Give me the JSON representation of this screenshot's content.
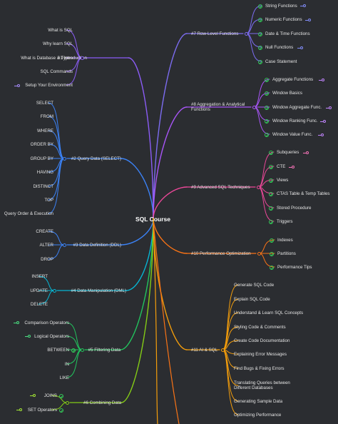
{
  "center": {
    "label": "SQL Course",
    "color": "#ffffff"
  },
  "left_branches": [
    {
      "label": "#1 Introduction",
      "color": "#8b5cf6",
      "children": [
        {
          "label": "What is SQL"
        },
        {
          "label": "Why learn SQL"
        },
        {
          "label": "What is Database & Types"
        },
        {
          "label": "SQL Commands"
        },
        {
          "label": "Setup Your Environment",
          "icon": "link-icon"
        }
      ]
    },
    {
      "label": "#2 Query Data (SELECT)",
      "color": "#3b82f6",
      "children": [
        {
          "label": "SELECT"
        },
        {
          "label": "FROM"
        },
        {
          "label": "WHERE"
        },
        {
          "label": "ORDER BY"
        },
        {
          "label": "GROUP BY"
        },
        {
          "label": "HAVING"
        },
        {
          "label": "DISTINCT"
        },
        {
          "label": "TOP"
        },
        {
          "label": "Query Order & Execution"
        }
      ]
    },
    {
      "label": "#3 Data Definition (DDL)",
      "color": "#3b82f6",
      "children": [
        {
          "label": "CREATE"
        },
        {
          "label": "ALTER"
        },
        {
          "label": "DROP"
        }
      ]
    },
    {
      "label": "#4 Data Manipulation (DML)",
      "color": "#06b6d4",
      "children": [
        {
          "label": "INSERT"
        },
        {
          "label": "UPDATE"
        },
        {
          "label": "DELETE"
        }
      ]
    },
    {
      "label": "#5 Filtering Data",
      "color": "#22c55e",
      "children": [
        {
          "label": "Comparison Operators",
          "icon": "link-icon"
        },
        {
          "label": "Logical Operators",
          "icon": "link-icon"
        },
        {
          "label": "BETWEEN",
          "icon": "check-icon"
        },
        {
          "label": "IN"
        },
        {
          "label": "LIKE"
        }
      ]
    },
    {
      "label": "#6 Combining Data",
      "color": "#84cc16",
      "children": [
        {
          "label": "JOINS",
          "icon": "link-icon"
        },
        {
          "label": "SET Operators",
          "icon": "link-icon"
        }
      ]
    }
  ],
  "right_branches": [
    {
      "label": "#7 Row-Level Functions",
      "color": "#7c6cf0",
      "children": [
        {
          "label": "String Functions",
          "icon": "link-icon"
        },
        {
          "label": "Numeric Functions",
          "icon": "link-icon"
        },
        {
          "label": "Date & Time Functions",
          "icon": "link-icon"
        },
        {
          "label": "Null Functions",
          "icon": "link-icon"
        },
        {
          "label": "Case Statement"
        }
      ]
    },
    {
      "label": "#8 Aggregation & Analytical Functions",
      "color": "#a855f7",
      "children": [
        {
          "label": "Aggregate Functions",
          "icon": "link-icon"
        },
        {
          "label": "Window Basics"
        },
        {
          "label": "Window Aggregate Func.",
          "icon": "link-icon"
        },
        {
          "label": "Window Ranking Func.",
          "icon": "link-icon"
        },
        {
          "label": "Window Value Func.",
          "icon": "link-icon"
        }
      ]
    },
    {
      "label": "#9 Advanced SQL Techniques",
      "color": "#ec4899",
      "children": [
        {
          "label": "Subqueries",
          "icon": "link-icon"
        },
        {
          "label": "CTE",
          "icon": "link-icon"
        },
        {
          "label": "Views"
        },
        {
          "label": "CTAS Table & Temp Tables"
        },
        {
          "label": "Stored Procedure"
        },
        {
          "label": "Triggers"
        }
      ]
    },
    {
      "label": "#10 Performance Optimization",
      "color": "#f97316",
      "children": [
        {
          "label": "Indexes"
        },
        {
          "label": "Partitions"
        },
        {
          "label": "Performance Tips"
        }
      ]
    },
    {
      "label": "#11 AI & SQL",
      "color": "#f59e0b",
      "children": [
        {
          "label": "Generate SQL Code"
        },
        {
          "label": "Explain SQL Code"
        },
        {
          "label": "Understand & Learn SQL Concepts"
        },
        {
          "label": "Styling Code & Comments"
        },
        {
          "label": "Create Code Documentation"
        },
        {
          "label": "Explaining Error Messages"
        },
        {
          "label": "Find Bugs & Fixing Errors"
        },
        {
          "label": "Translating Queries between Different Databases"
        },
        {
          "label": "Generating Sample Data"
        },
        {
          "label": "Optimizing Performance"
        }
      ]
    }
  ]
}
